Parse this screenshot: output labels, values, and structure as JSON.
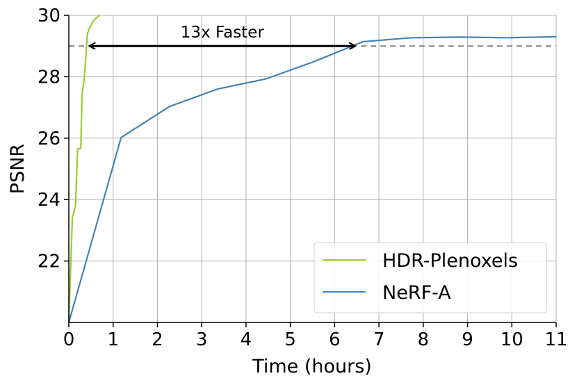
{
  "chart_data": {
    "type": "line",
    "xlabel": "Time (hours)",
    "ylabel": "PSNR",
    "xlim": [
      0,
      11
    ],
    "ylim": [
      20,
      30
    ],
    "xticks": [
      0,
      1,
      2,
      3,
      4,
      5,
      6,
      7,
      8,
      9,
      10,
      11
    ],
    "yticks": [
      22,
      24,
      26,
      28,
      30
    ],
    "grid": true,
    "legend_position": "bottom-right",
    "series": [
      {
        "name": "HDR-Plenoxels",
        "color": "#9acd32",
        "x": [
          0.0,
          0.08,
          0.15,
          0.2,
          0.27,
          0.3,
          0.35,
          0.42,
          0.47,
          0.55,
          0.62,
          0.7
        ],
        "y": [
          20.0,
          23.4,
          23.8,
          25.65,
          25.67,
          27.45,
          27.95,
          29.4,
          29.6,
          29.8,
          29.92,
          30.0
        ]
      },
      {
        "name": "NeRF-A",
        "color": "#4682b4",
        "x": [
          0.0,
          1.18,
          2.27,
          3.36,
          4.45,
          5.55,
          6.64,
          7.73,
          8.82,
          9.91,
          11.0
        ],
        "y": [
          20.0,
          26.02,
          27.03,
          27.6,
          27.93,
          28.5,
          29.14,
          29.27,
          29.29,
          29.27,
          29.3
        ]
      }
    ],
    "reference_line": {
      "y": 29.0,
      "style": "dashed",
      "color": "#808080"
    },
    "annotation": {
      "text": "13x Faster",
      "arrow_from_x": 0.48,
      "arrow_to_x": 6.45,
      "arrow_y": 29.0
    }
  }
}
